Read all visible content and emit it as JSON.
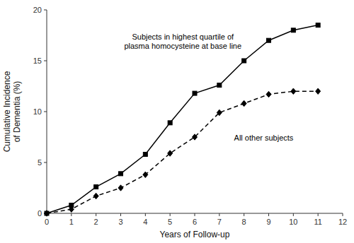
{
  "chart_data": {
    "type": "line",
    "x": [
      0,
      1,
      2,
      3,
      4,
      5,
      6,
      7,
      8,
      9,
      10,
      11
    ],
    "series": [
      {
        "name": "Subjects in highest quartile of\nplasma homocysteine at base line",
        "color": "#000000",
        "marker": "square",
        "line_style": "solid",
        "values": [
          0,
          0.8,
          2.6,
          3.9,
          5.8,
          8.9,
          11.8,
          12.6,
          15.0,
          17.0,
          18.0,
          18.5
        ]
      },
      {
        "name": "All other subjects",
        "color": "#000000",
        "marker": "diamond",
        "line_style": "dashed",
        "values": [
          0,
          0.4,
          1.7,
          2.5,
          3.8,
          5.9,
          7.5,
          9.9,
          10.8,
          11.7,
          12.0,
          12.0
        ]
      }
    ],
    "x_label": "Years of Follow-up",
    "y_label": "Cumulative Incidence\nof Dementia (%)",
    "xlim": [
      0,
      12
    ],
    "ylim": [
      0,
      20
    ],
    "xticks": [
      0,
      1,
      2,
      3,
      4,
      5,
      6,
      7,
      8,
      9,
      10,
      11,
      12
    ],
    "yticks": [
      0,
      5,
      10,
      15,
      20
    ],
    "grid": false
  }
}
